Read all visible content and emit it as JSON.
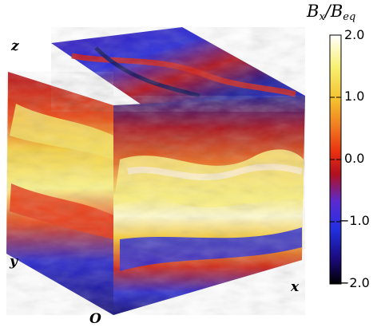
{
  "figure": {
    "axis_labels": {
      "z": "z",
      "y": "y",
      "x": "x",
      "origin": "O"
    },
    "colorbar": {
      "title_main": "B",
      "title_sub1": "x",
      "title_sep": "/B",
      "title_sub2": "eq",
      "ticks": [
        "2.0",
        "1.0",
        "0.0",
        "−1.0",
        "−2.0"
      ],
      "range": [
        -2.0,
        2.0
      ],
      "colormap": [
        "#000000",
        "#1a0a7a",
        "#2230e0",
        "#5a2ad0",
        "#b01020",
        "#e83010",
        "#f07a20",
        "#f4c030",
        "#f8f070",
        "#ffffff"
      ]
    }
  }
}
